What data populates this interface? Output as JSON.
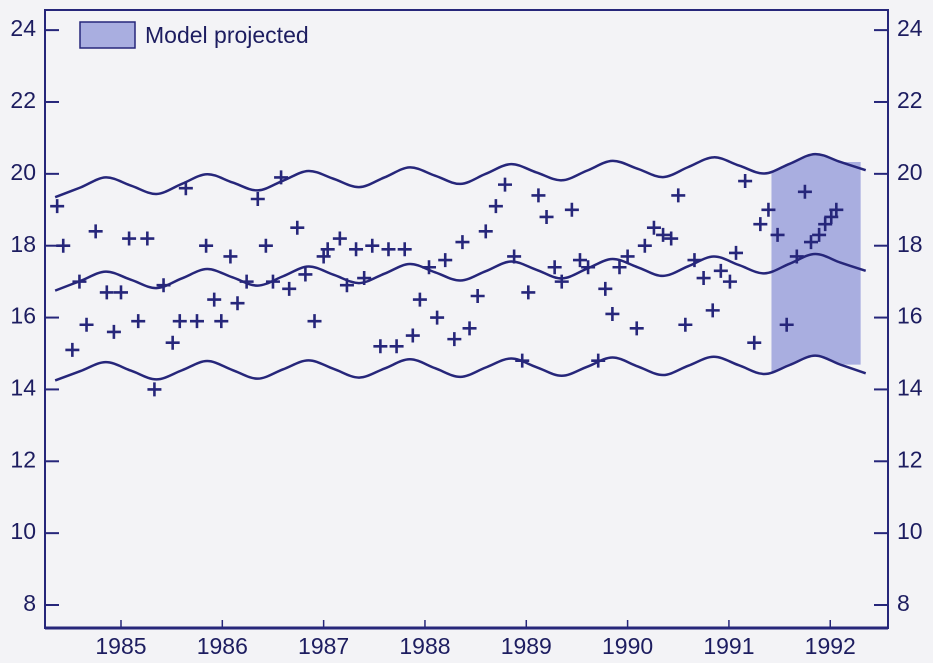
{
  "chart_data": {
    "type": "scatter",
    "xlim": [
      1984.75,
      1993.07
    ],
    "ylim": [
      7.36,
      24.56
    ],
    "yticks": [
      8,
      10,
      12,
      14,
      16,
      18,
      20,
      22,
      24
    ],
    "xticks": [
      {
        "value": 1985.5,
        "label": "1985"
      },
      {
        "value": 1986.5,
        "label": "1986"
      },
      {
        "value": 1987.5,
        "label": "1987"
      },
      {
        "value": 1988.5,
        "label": "1988"
      },
      {
        "value": 1989.5,
        "label": "1989"
      },
      {
        "value": 1990.5,
        "label": "1990"
      },
      {
        "value": 1991.5,
        "label": "1991"
      },
      {
        "value": 1992.5,
        "label": "1992"
      }
    ],
    "color": "#26267a",
    "shaded_region": {
      "label": "Model projected",
      "x": [
        1991.92,
        1992.8
      ],
      "color": "#a9aee0"
    },
    "lines": [
      {
        "x": [
          1984.85,
          1985.1,
          1985.35,
          1985.6,
          1985.85,
          1986.1,
          1986.35,
          1986.6,
          1986.85,
          1987.1,
          1987.35,
          1987.6,
          1987.85,
          1988.1,
          1988.35,
          1988.6,
          1988.85,
          1989.1,
          1989.35,
          1989.6,
          1989.85,
          1990.1,
          1990.35,
          1990.6,
          1990.85,
          1991.1,
          1991.35,
          1991.6,
          1991.85,
          1992.1,
          1992.35,
          1992.6,
          1992.85
        ],
        "values": [
          19.35,
          19.62,
          19.9,
          19.67,
          19.44,
          19.72,
          19.99,
          19.76,
          19.54,
          19.81,
          20.08,
          19.86,
          19.63,
          19.9,
          20.18,
          19.95,
          19.72,
          20.0,
          20.27,
          20.04,
          19.82,
          20.09,
          20.36,
          20.14,
          19.91,
          20.19,
          20.46,
          20.23,
          20.01,
          20.28,
          20.55,
          20.33,
          20.1
        ]
      },
      {
        "x": [
          1984.85,
          1985.1,
          1985.35,
          1985.6,
          1985.85,
          1986.1,
          1986.35,
          1986.6,
          1986.85,
          1987.1,
          1987.35,
          1987.6,
          1987.85,
          1988.1,
          1988.35,
          1988.6,
          1988.85,
          1989.1,
          1989.35,
          1989.6,
          1989.85,
          1990.1,
          1990.35,
          1990.6,
          1990.85,
          1991.1,
          1991.35,
          1991.6,
          1991.85,
          1992.1,
          1992.35,
          1992.6,
          1992.85
        ],
        "values": [
          16.75,
          17.02,
          17.28,
          17.05,
          16.82,
          17.09,
          17.35,
          17.12,
          16.89,
          17.15,
          17.42,
          17.19,
          16.96,
          17.22,
          17.49,
          17.26,
          17.03,
          17.29,
          17.56,
          17.33,
          17.09,
          17.36,
          17.63,
          17.4,
          17.16,
          17.43,
          17.7,
          17.46,
          17.23,
          17.5,
          17.77,
          17.53,
          17.3
        ]
      },
      {
        "x": [
          1984.85,
          1985.1,
          1985.35,
          1985.6,
          1985.85,
          1986.1,
          1986.35,
          1986.6,
          1986.85,
          1987.1,
          1987.35,
          1987.6,
          1987.85,
          1988.1,
          1988.35,
          1988.6,
          1988.85,
          1989.1,
          1989.35,
          1989.6,
          1989.85,
          1990.1,
          1990.35,
          1990.6,
          1990.85,
          1991.1,
          1991.35,
          1991.6,
          1991.85,
          1992.1,
          1992.35,
          1992.6,
          1992.85
        ],
        "values": [
          14.25,
          14.51,
          14.76,
          14.52,
          14.28,
          14.53,
          14.79,
          14.54,
          14.3,
          14.56,
          14.81,
          14.57,
          14.33,
          14.58,
          14.84,
          14.59,
          14.35,
          14.61,
          14.86,
          14.62,
          14.38,
          14.63,
          14.89,
          14.64,
          14.4,
          14.66,
          14.91,
          14.67,
          14.43,
          14.68,
          14.94,
          14.69,
          14.45
        ]
      }
    ],
    "x": [
      1984.87,
      1984.93,
      1985.02,
      1985.09,
      1985.16,
      1985.25,
      1985.36,
      1985.43,
      1985.5,
      1985.58,
      1985.67,
      1985.76,
      1985.83,
      1985.92,
      1986.01,
      1986.08,
      1986.14,
      1986.25,
      1986.34,
      1986.42,
      1986.49,
      1986.58,
      1986.65,
      1986.74,
      1986.85,
      1986.93,
      1987.0,
      1987.08,
      1987.16,
      1987.24,
      1987.32,
      1987.41,
      1987.5,
      1987.54,
      1987.66,
      1987.73,
      1987.82,
      1987.9,
      1987.98,
      1988.06,
      1988.14,
      1988.22,
      1988.3,
      1988.38,
      1988.45,
      1988.54,
      1988.62,
      1988.7,
      1988.79,
      1988.87,
      1988.94,
      1989.02,
      1989.1,
      1989.2,
      1989.29,
      1989.38,
      1989.46,
      1989.52,
      1989.62,
      1989.7,
      1989.78,
      1989.85,
      1989.95,
      1990.03,
      1990.11,
      1990.21,
      1990.28,
      1990.35,
      1990.42,
      1990.5,
      1990.59,
      1990.67,
      1990.76,
      1990.85,
      1990.93,
      1991.0,
      1991.07,
      1991.16,
      1991.25,
      1991.34,
      1991.42,
      1991.51,
      1991.57,
      1991.66,
      1991.75,
      1991.81,
      1991.89,
      1991.98,
      1992.07,
      1992.17,
      1992.25,
      1992.31,
      1992.39,
      1992.45,
      1992.51,
      1992.56
    ],
    "values": [
      19.1,
      18.0,
      15.1,
      17.0,
      15.8,
      18.4,
      16.7,
      15.6,
      16.7,
      18.2,
      15.9,
      18.2,
      14.0,
      16.9,
      15.3,
      15.9,
      19.6,
      15.9,
      18.0,
      16.5,
      15.9,
      17.7,
      16.4,
      17.0,
      19.3,
      18.0,
      17.0,
      19.9,
      16.8,
      18.5,
      17.2,
      15.9,
      17.7,
      17.9,
      18.2,
      16.9,
      17.9,
      17.1,
      18.0,
      15.2,
      17.9,
      15.2,
      17.9,
      15.5,
      16.5,
      17.4,
      16.0,
      17.6,
      15.4,
      18.1,
      15.7,
      16.6,
      18.4,
      19.1,
      19.7,
      17.7,
      14.8,
      16.7,
      19.4,
      18.8,
      17.4,
      17.0,
      19.0,
      17.6,
      17.4,
      14.8,
      16.8,
      16.1,
      17.4,
      17.7,
      15.7,
      18.0,
      18.5,
      18.3,
      18.2,
      19.4,
      15.8,
      17.6,
      17.1,
      16.2,
      17.3,
      17.0,
      17.8,
      19.8,
      15.3,
      18.6,
      19.0,
      18.3,
      15.8,
      17.7,
      19.5,
      18.1,
      18.3,
      18.6,
      18.8,
      19.0
    ]
  }
}
